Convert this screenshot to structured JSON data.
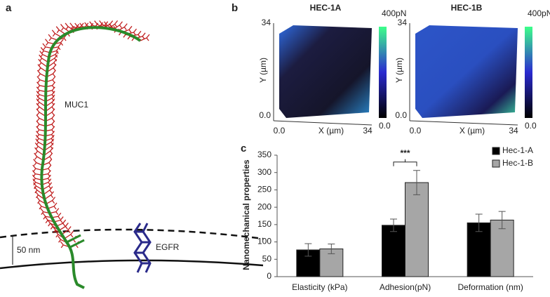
{
  "panel_a": {
    "label": "a",
    "muc1": "MUC1",
    "egfr": "EGFR",
    "distance": "50 nm"
  },
  "panel_b": {
    "label": "b",
    "images": [
      {
        "title": "HEC-1A",
        "y_label": "Y (µm)",
        "x_label": "X (µm)",
        "y_top": "34",
        "y_bottom": "0.0",
        "x_left": "0.0",
        "x_right": "34",
        "scale_top": "400pN",
        "scale_bottom": "0.0"
      },
      {
        "title": "HEC-1B",
        "y_label": "Y (µm)",
        "x_label": "X (µm)",
        "y_top": "34",
        "y_bottom": "0.0",
        "x_left": "0.0",
        "x_right": "34",
        "scale_top": "400pN",
        "scale_bottom": "0.0"
      }
    ]
  },
  "panel_c_label": "c",
  "chart_data": {
    "type": "bar",
    "y_label": "Nanomechanical properties",
    "categories": [
      "Elasticity (kPa)",
      "Adhesion(pN)",
      "Deformation (nm)"
    ],
    "series": [
      {
        "name": "Hec-1-A",
        "color": "#000000",
        "values": [
          77,
          148,
          155
        ],
        "errors": [
          18,
          18,
          25
        ]
      },
      {
        "name": "Hec-1-B",
        "color": "#a6a6a6",
        "values": [
          80,
          271,
          163
        ],
        "errors": [
          14,
          35,
          25
        ]
      }
    ],
    "ylim": [
      0,
      350
    ],
    "yticks": [
      0,
      50,
      100,
      150,
      200,
      250,
      300,
      350
    ],
    "annotation": "***",
    "legend": "top-right"
  }
}
